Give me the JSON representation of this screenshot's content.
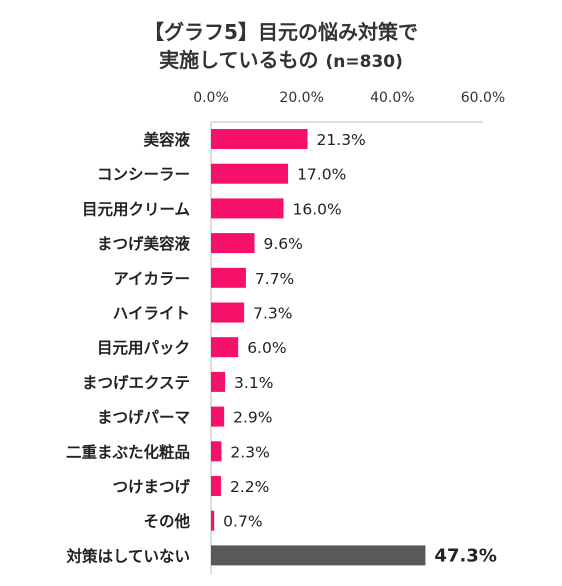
{
  "chart_data": {
    "type": "bar",
    "orientation": "horizontal",
    "title_line1": "【グラフ5】目元の悩み対策で",
    "title_line2": "実施しているもの",
    "title_note": "(n=830)",
    "xlim": [
      0,
      60
    ],
    "ticks": [
      "0.0%",
      "20.0%",
      "40.0%",
      "60.0%"
    ],
    "tick_values": [
      0,
      20,
      40,
      60
    ],
    "categories": [
      "美容液",
      "コンシーラー",
      "目元用クリーム",
      "まつげ美容液",
      "アイカラー",
      "ハイライト",
      "目元用パック",
      "まつげエクステ",
      "まつげパーマ",
      "二重まぶた化粧品",
      "つけまつげ",
      "その他",
      "対策はしていない"
    ],
    "values": [
      21.3,
      17.0,
      16.0,
      9.6,
      7.7,
      7.3,
      6.0,
      3.1,
      2.9,
      2.3,
      2.2,
      0.7,
      47.3
    ],
    "labels": [
      "21.3%",
      "17.0%",
      "16.0%",
      "9.6%",
      "7.7%",
      "7.3%",
      "6.0%",
      "3.1%",
      "2.9%",
      "2.3%",
      "2.2%",
      "0.7%",
      "47.3%"
    ],
    "colors": [
      "#f5106a",
      "#f5106a",
      "#f5106a",
      "#f5106a",
      "#f5106a",
      "#f5106a",
      "#f5106a",
      "#f5106a",
      "#f5106a",
      "#f5106a",
      "#f5106a",
      "#f5106a",
      "#595959"
    ],
    "highlight_index": 12,
    "grid": false,
    "legend": "none"
  }
}
